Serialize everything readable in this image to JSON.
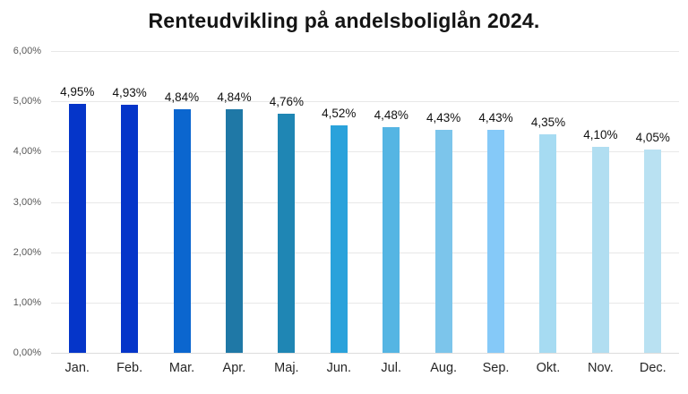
{
  "chart_data": {
    "type": "bar",
    "title": "Renteudvikling på andelsboliglån 2024.",
    "categories": [
      "Jan.",
      "Feb.",
      "Mar.",
      "Apr.",
      "Maj.",
      "Jun.",
      "Jul.",
      "Aug.",
      "Sep.",
      "Okt.",
      "Nov.",
      "Dec."
    ],
    "values": [
      4.95,
      4.93,
      4.84,
      4.84,
      4.76,
      4.52,
      4.48,
      4.43,
      4.43,
      4.35,
      4.1,
      4.05
    ],
    "value_labels": [
      "4,95%",
      "4,93%",
      "4,84%",
      "4,84%",
      "4,76%",
      "4,52%",
      "4,48%",
      "4,43%",
      "4,43%",
      "4,35%",
      "4,10%",
      "4,05%"
    ],
    "bar_colors": [
      "#0535C9",
      "#0535C9",
      "#0B66CF",
      "#1F78A6",
      "#1F86B4",
      "#2AA2DB",
      "#55B5E3",
      "#7CC5EB",
      "#85C9F8",
      "#A6DBF2",
      "#B1DEF1",
      "#B9E1F2"
    ],
    "y_tick_labels": [
      "0,00%",
      "1,00%",
      "2,00%",
      "3,00%",
      "4,00%",
      "5,00%",
      "6,00%"
    ],
    "y_tick_values": [
      0,
      1,
      2,
      3,
      4,
      5,
      6
    ],
    "ylim": [
      0,
      6
    ],
    "xlabel": "",
    "ylabel": "",
    "grid": "horizontal",
    "legend_position": "none"
  },
  "colors": {
    "background": "#ffffff",
    "gridline": "#e8e8e8",
    "baseline": "#dcdcdc",
    "axis_text": "#595959",
    "category_text": "#262626",
    "value_label_text": "#111111",
    "title_text": "#141414"
  }
}
